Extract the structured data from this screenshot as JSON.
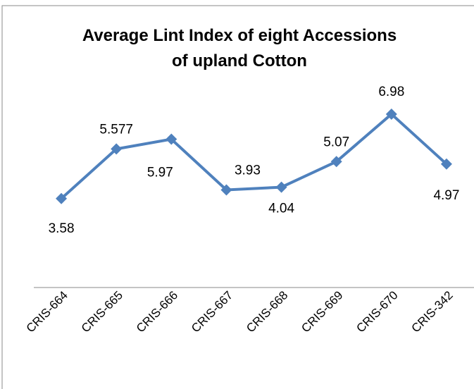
{
  "chart_data": {
    "type": "line",
    "title": [
      "Average Lint Index of eight Accessions",
      "of upland Cotton"
    ],
    "categories": [
      "CRIS-664",
      "CRIS-665",
      "CRIS-666",
      "CRIS-667",
      "CRIS-668",
      "CRIS-669",
      "CRIS-670",
      "CRIS-342"
    ],
    "values": [
      3.58,
      5.577,
      5.97,
      3.93,
      4.04,
      5.07,
      6.98,
      4.97
    ],
    "color": "#4f81bd",
    "ylim": [
      0,
      8
    ]
  }
}
